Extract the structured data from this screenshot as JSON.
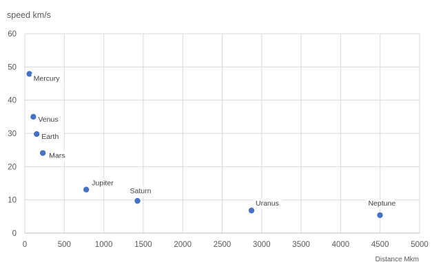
{
  "chart_data": {
    "type": "scatter",
    "title": "",
    "xlabel": "Distance Mkm",
    "ylabel": "speed km/s",
    "xlim": [
      0,
      5000
    ],
    "ylim": [
      0,
      60
    ],
    "x_ticks": [
      "0",
      "500",
      "1000",
      "1500",
      "2000",
      "2500",
      "3000",
      "3500",
      "4000",
      "4500",
      "5000"
    ],
    "y_ticks": [
      "0",
      "10",
      "20",
      "30",
      "40",
      "50",
      "60"
    ],
    "grid": true,
    "marker_color": "#4472c4",
    "points": [
      {
        "label": "Mercury",
        "x": 58,
        "y": 47.9
      },
      {
        "label": "Venus",
        "x": 108,
        "y": 35.0
      },
      {
        "label": "Earth",
        "x": 150,
        "y": 29.8
      },
      {
        "label": "Mars",
        "x": 228,
        "y": 24.1
      },
      {
        "label": "Jupiter",
        "x": 778,
        "y": 13.1
      },
      {
        "label": "Saturn",
        "x": 1427,
        "y": 9.7
      },
      {
        "label": "Uranus",
        "x": 2871,
        "y": 6.8
      },
      {
        "label": "Neptune",
        "x": 4498,
        "y": 5.4
      }
    ]
  }
}
